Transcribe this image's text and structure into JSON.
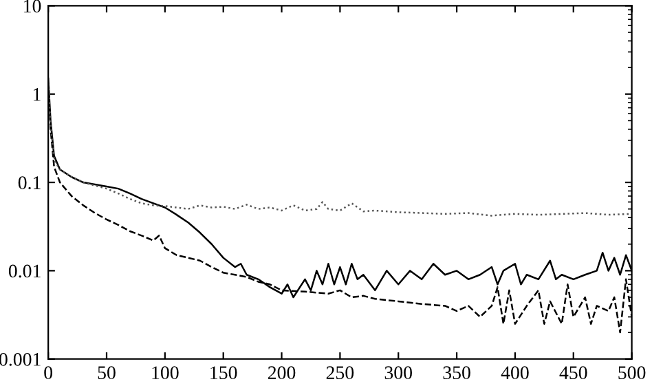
{
  "chart_data": {
    "type": "line",
    "log": "y",
    "xlim": [
      0,
      500
    ],
    "ylim": [
      0.001,
      10
    ],
    "xticks": [
      0,
      50,
      100,
      150,
      200,
      250,
      300,
      350,
      400,
      450,
      500
    ],
    "yticks": [
      0.001,
      0.01,
      0.1,
      1,
      10
    ],
    "grid": false,
    "legend": false,
    "series": [
      {
        "color": "#000000",
        "line_style": "solid",
        "x": [
          0,
          2,
          5,
          10,
          20,
          30,
          50,
          60,
          70,
          80,
          90,
          100,
          110,
          120,
          130,
          140,
          150,
          160,
          165,
          170,
          180,
          190,
          200,
          205,
          210,
          220,
          225,
          230,
          235,
          240,
          245,
          250,
          255,
          260,
          265,
          270,
          280,
          290,
          300,
          310,
          320,
          330,
          340,
          350,
          360,
          370,
          380,
          385,
          390,
          400,
          405,
          410,
          420,
          430,
          435,
          440,
          450,
          460,
          470,
          475,
          480,
          485,
          490,
          495,
          500
        ],
        "values": [
          1.5,
          0.5,
          0.2,
          0.14,
          0.115,
          0.1,
          0.09,
          0.085,
          0.075,
          0.065,
          0.058,
          0.052,
          0.043,
          0.035,
          0.027,
          0.02,
          0.014,
          0.011,
          0.012,
          0.009,
          0.008,
          0.0065,
          0.0055,
          0.007,
          0.005,
          0.008,
          0.006,
          0.01,
          0.007,
          0.012,
          0.007,
          0.011,
          0.007,
          0.012,
          0.008,
          0.009,
          0.006,
          0.01,
          0.007,
          0.01,
          0.008,
          0.012,
          0.009,
          0.01,
          0.008,
          0.009,
          0.011,
          0.007,
          0.01,
          0.012,
          0.007,
          0.009,
          0.008,
          0.013,
          0.008,
          0.009,
          0.008,
          0.009,
          0.01,
          0.016,
          0.01,
          0.014,
          0.009,
          0.015,
          0.01
        ]
      },
      {
        "color": "#000000",
        "line_style": "dashed",
        "x": [
          0,
          2,
          5,
          10,
          20,
          30,
          40,
          50,
          60,
          70,
          80,
          90,
          95,
          100,
          110,
          120,
          130,
          140,
          150,
          160,
          170,
          180,
          190,
          200,
          220,
          240,
          250,
          260,
          270,
          280,
          300,
          320,
          340,
          350,
          360,
          370,
          380,
          385,
          390,
          395,
          400,
          410,
          420,
          425,
          430,
          440,
          445,
          450,
          460,
          465,
          470,
          480,
          485,
          490,
          495,
          500
        ],
        "values": [
          1.2,
          0.4,
          0.15,
          0.1,
          0.07,
          0.055,
          0.045,
          0.038,
          0.033,
          0.028,
          0.025,
          0.022,
          0.025,
          0.018,
          0.015,
          0.014,
          0.013,
          0.011,
          0.0095,
          0.009,
          0.0085,
          0.0075,
          0.007,
          0.006,
          0.0058,
          0.0055,
          0.006,
          0.005,
          0.0052,
          0.0048,
          0.0045,
          0.0042,
          0.004,
          0.0035,
          0.004,
          0.003,
          0.004,
          0.0065,
          0.0025,
          0.006,
          0.0025,
          0.004,
          0.006,
          0.0025,
          0.0045,
          0.0025,
          0.007,
          0.003,
          0.005,
          0.0025,
          0.004,
          0.0035,
          0.005,
          0.002,
          0.008,
          0.003
        ]
      },
      {
        "color": "#555555",
        "line_style": "dotted",
        "x": [
          0,
          2,
          5,
          10,
          20,
          30,
          50,
          60,
          70,
          80,
          90,
          100,
          110,
          120,
          130,
          140,
          150,
          160,
          170,
          180,
          190,
          200,
          210,
          220,
          230,
          235,
          240,
          250,
          260,
          270,
          280,
          300,
          320,
          340,
          360,
          380,
          400,
          420,
          440,
          460,
          480,
          500
        ],
        "values": [
          1.3,
          0.45,
          0.18,
          0.14,
          0.115,
          0.1,
          0.085,
          0.075,
          0.065,
          0.058,
          0.055,
          0.054,
          0.052,
          0.05,
          0.055,
          0.052,
          0.053,
          0.05,
          0.056,
          0.05,
          0.052,
          0.048,
          0.055,
          0.048,
          0.05,
          0.06,
          0.05,
          0.048,
          0.058,
          0.047,
          0.048,
          0.046,
          0.045,
          0.044,
          0.045,
          0.042,
          0.044,
          0.043,
          0.044,
          0.045,
          0.043,
          0.044
        ]
      }
    ]
  }
}
